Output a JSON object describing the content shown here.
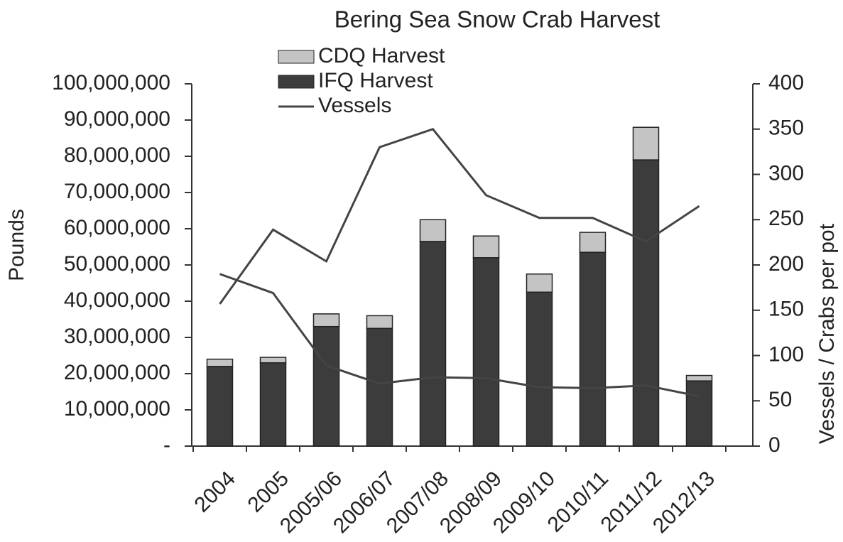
{
  "chart_data": {
    "type": "bar",
    "stacked": true,
    "title": "Bering Sea Snow Crab Harvest",
    "ylabel": "Pounds",
    "y2label": "Vessels / Crabs per pot",
    "categories": [
      "2004",
      "2005",
      "2005/06",
      "2006/07",
      "2007/08",
      "2008/09",
      "2009/10",
      "2010/11",
      "2011/12",
      "2012/13"
    ],
    "series": [
      {
        "name": "CDQ Harvest",
        "type": "bar",
        "color": "#c4c4c4",
        "values": [
          2000000,
          1500000,
          3500000,
          3500000,
          6000000,
          6000000,
          5000000,
          5500000,
          9000000,
          1500000
        ]
      },
      {
        "name": "IFQ Harvest",
        "type": "bar",
        "color": "#3c3c3c",
        "values": [
          22000000,
          23000000,
          33000000,
          32500000,
          56500000,
          52000000,
          42500000,
          53500000,
          79000000,
          18000000
        ]
      },
      {
        "name": "Vessels",
        "type": "line",
        "axis": "y2",
        "color": "#444444",
        "values": [
          190,
          169,
          89,
          69,
          76,
          75,
          65,
          64,
          67,
          55
        ]
      },
      {
        "type": "line",
        "axis": "y2",
        "color": "#444444",
        "values": [
          157,
          239,
          204,
          330,
          350,
          277,
          252,
          252,
          226,
          265
        ]
      }
    ],
    "ylim": [
      0,
      100000000
    ],
    "yticks": [
      {
        "value": 0,
        "label": "-"
      },
      {
        "value": 10000000,
        "label": "10,000,000"
      },
      {
        "value": 20000000,
        "label": "20,000,000"
      },
      {
        "value": 30000000,
        "label": "30,000,000"
      },
      {
        "value": 40000000,
        "label": "40,000,000"
      },
      {
        "value": 50000000,
        "label": "50,000,000"
      },
      {
        "value": 60000000,
        "label": "60,000,000"
      },
      {
        "value": 70000000,
        "label": "70,000,000"
      },
      {
        "value": 80000000,
        "label": "80,000,000"
      },
      {
        "value": 90000000,
        "label": "90,000,000"
      },
      {
        "value": 100000000,
        "label": "100,000,000"
      }
    ],
    "y2lim": [
      0,
      400
    ],
    "y2ticks": [
      0,
      50,
      100,
      150,
      200,
      250,
      300,
      350,
      400
    ],
    "legend": "top"
  }
}
